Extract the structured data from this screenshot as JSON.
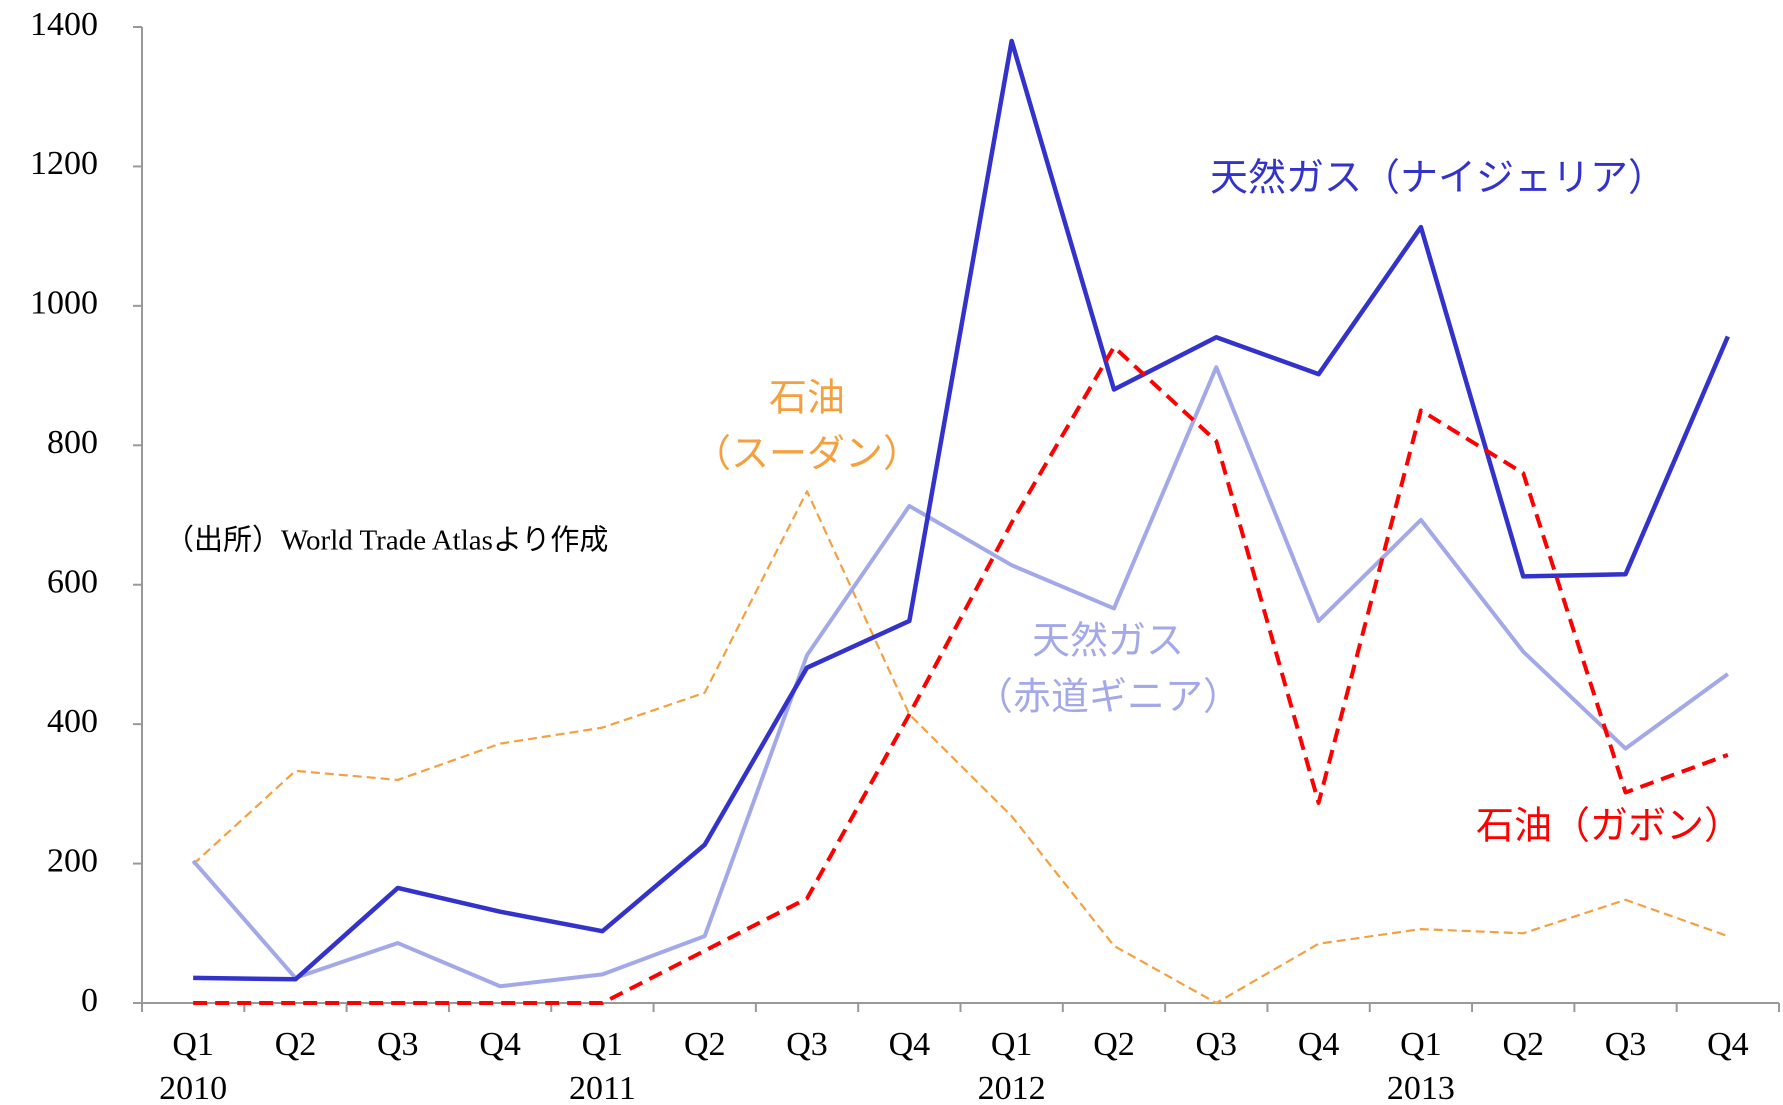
{
  "chart_data": {
    "type": "line",
    "source": "（出所）World Trade Atlasより作成",
    "categories": [
      "Q1",
      "Q2",
      "Q3",
      "Q4",
      "Q1",
      "Q2",
      "Q3",
      "Q4",
      "Q1",
      "Q2",
      "Q3",
      "Q4",
      "Q1",
      "Q2",
      "Q3",
      "Q4"
    ],
    "year_labels": [
      "2010",
      null,
      null,
      null,
      "2011",
      null,
      null,
      null,
      "2012",
      null,
      null,
      null,
      "2013",
      null,
      null,
      null
    ],
    "ylim": [
      0,
      1400
    ],
    "yticks": [
      0,
      200,
      400,
      600,
      800,
      1000,
      1200,
      1400
    ],
    "grid": false,
    "series": [
      {
        "label": [
          "天然ガス（ナイジェリア）"
        ],
        "color": "#3333cc",
        "style": "solid",
        "width": 4.5,
        "values": [
          36,
          34,
          165,
          131,
          103,
          227,
          481,
          548,
          1380,
          880,
          955,
          902,
          1113,
          612,
          615,
          956
        ]
      },
      {
        "label": [
          "天然ガス",
          "（赤道ギニア）"
        ],
        "color": "#a3a9e8",
        "style": "solid",
        "width": 4,
        "values": [
          204,
          36,
          86,
          24,
          41,
          96,
          499,
          713,
          628,
          566,
          912,
          548,
          693,
          504,
          365,
          472
        ]
      },
      {
        "label": [
          "石油（ガボン）"
        ],
        "color": "#ff0000",
        "style": "dashed",
        "width": 4,
        "values": [
          0,
          0,
          0,
          0,
          0,
          75,
          150,
          414,
          689,
          941,
          806,
          287,
          850,
          760,
          302,
          356
        ]
      },
      {
        "label": [
          "石油",
          "（スーダン）"
        ],
        "color": "#f4a040",
        "style": "dashed-thin",
        "width": 2.2,
        "values": [
          199,
          333,
          320,
          372,
          395,
          445,
          734,
          414,
          268,
          82,
          0,
          85,
          106,
          100,
          148,
          96
        ]
      }
    ]
  }
}
